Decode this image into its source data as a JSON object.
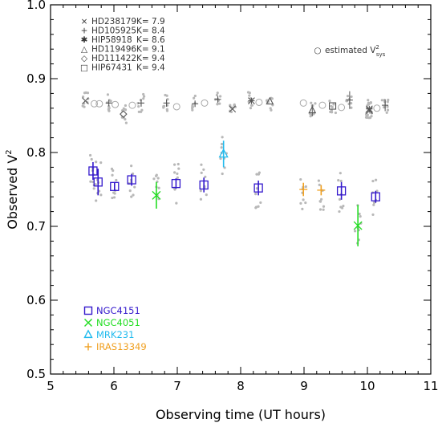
{
  "chart_data": {
    "type": "scatter",
    "xlabel": "Observing time (UT hours)",
    "ylabel": "Observed V²",
    "ylabel_base": "Observed V",
    "ylabel_sup": "2",
    "xlim": [
      5,
      11
    ],
    "ylim": [
      0.5,
      1.0
    ],
    "x_ticks": [
      "5",
      "6",
      "7",
      "8",
      "9",
      "10",
      "11"
    ],
    "y_ticks": [
      "0.5",
      "0.6",
      "0.7",
      "0.8",
      "0.9",
      "1.0"
    ],
    "colors": {
      "ngc4151": "#3318cc",
      "ngc4051": "#22dd22",
      "mrk231": "#22bbee",
      "iras13349": "#f0a020",
      "calibrator": "#555555",
      "estimated": "#a8a8a8",
      "raw": "#b8b8b8"
    },
    "calibrator_legend": [
      {
        "symbol": "×",
        "name": "HD238179",
        "k": "K= 7.9"
      },
      {
        "symbol": "+",
        "name": "HD105925",
        "k": "K= 8.4"
      },
      {
        "symbol": "✱",
        "name": "HIP58918",
        "k": "K= 8.6"
      },
      {
        "symbol": "△",
        "name": "HD119496",
        "k": "K= 9.1"
      },
      {
        "symbol": "◇",
        "name": "HD111422",
        "k": "K= 9.4"
      },
      {
        "symbol": "□",
        "name": "HIP67431",
        "k": "K= 9.4"
      }
    ],
    "estimated_legend": {
      "symbol": "○",
      "text": "estimated V",
      "sup": "2",
      "sub": "sys"
    },
    "science_legend": [
      {
        "symbol": "□",
        "name": "NGC4151",
        "color": "#3318cc"
      },
      {
        "symbol": "×",
        "name": "NGC4051",
        "color": "#22dd22"
      },
      {
        "symbol": "△",
        "name": "MRK231",
        "color": "#22bbee"
      },
      {
        "symbol": "+",
        "name": "IRAS13349",
        "color": "#f0a020"
      }
    ],
    "series": [
      {
        "name": "NGC4151",
        "marker": "square",
        "color": "#3318cc",
        "points": [
          {
            "x": 5.67,
            "y": 0.775,
            "err": 0.012
          },
          {
            "x": 5.75,
            "y": 0.76,
            "err": 0.018
          },
          {
            "x": 6.01,
            "y": 0.754,
            "err": 0.006
          },
          {
            "x": 6.28,
            "y": 0.763,
            "err": 0.008
          },
          {
            "x": 6.98,
            "y": 0.758,
            "err": 0.007
          },
          {
            "x": 7.42,
            "y": 0.756,
            "err": 0.01
          },
          {
            "x": 8.28,
            "y": 0.752,
            "err": 0.01
          },
          {
            "x": 9.59,
            "y": 0.748,
            "err": 0.012
          },
          {
            "x": 10.13,
            "y": 0.74,
            "err": 0.008
          }
        ]
      },
      {
        "name": "NGC4051",
        "marker": "x",
        "color": "#22dd22",
        "points": [
          {
            "x": 6.67,
            "y": 0.742,
            "err": 0.018
          },
          {
            "x": 9.85,
            "y": 0.701,
            "err": 0.028
          }
        ]
      },
      {
        "name": "MRK231",
        "marker": "triangle",
        "color": "#22bbee",
        "points": [
          {
            "x": 7.73,
            "y": 0.798,
            "err": 0.018
          }
        ]
      },
      {
        "name": "IRAS13349",
        "marker": "plus",
        "color": "#f0a020",
        "points": [
          {
            "x": 8.99,
            "y": 0.75,
            "err": 0.009
          },
          {
            "x": 9.27,
            "y": 0.749,
            "err": 0.007
          }
        ]
      },
      {
        "name": "HD238179",
        "marker": "x",
        "color": "#555555",
        "points": [
          {
            "x": 5.55,
            "y": 0.87,
            "err": 0.0
          },
          {
            "x": 7.87,
            "y": 0.859,
            "err": 0.0
          },
          {
            "x": 10.03,
            "y": 0.857,
            "err": 0.0
          }
        ]
      },
      {
        "name": "HD105925",
        "marker": "plus",
        "color": "#555555",
        "points": [
          {
            "x": 5.92,
            "y": 0.867,
            "err": 0.0
          },
          {
            "x": 6.43,
            "y": 0.867,
            "err": 0.005
          },
          {
            "x": 6.83,
            "y": 0.867,
            "err": 0.005
          },
          {
            "x": 7.28,
            "y": 0.866,
            "err": 0.0
          },
          {
            "x": 7.64,
            "y": 0.872,
            "err": 0.0
          },
          {
            "x": 9.72,
            "y": 0.871,
            "err": 0.012
          },
          {
            "x": 10.28,
            "y": 0.864,
            "err": 0.008
          }
        ]
      },
      {
        "name": "HIP58918",
        "marker": "asterisk",
        "color": "#555555",
        "points": [
          {
            "x": 8.17,
            "y": 0.87,
            "err": 0.0
          },
          {
            "x": 10.03,
            "y": 0.859,
            "err": 0.0
          }
        ]
      },
      {
        "name": "HD119496",
        "marker": "triangle",
        "color": "#555555",
        "points": [
          {
            "x": 8.46,
            "y": 0.869,
            "err": 0.0
          },
          {
            "x": 9.13,
            "y": 0.857,
            "err": 0.008
          }
        ]
      },
      {
        "name": "HD111422",
        "marker": "diamond",
        "color": "#555555",
        "points": [
          {
            "x": 6.15,
            "y": 0.852,
            "err": 0.0
          }
        ]
      },
      {
        "name": "HIP67431",
        "marker": "square",
        "color": "#555555",
        "points": [
          {
            "x": 9.45,
            "y": 0.863,
            "err": 0.0
          }
        ]
      },
      {
        "name": "estimated V2sys",
        "marker": "circle",
        "color": "#a8a8a8",
        "points": [
          {
            "x": 5.69,
            "y": 0.866
          },
          {
            "x": 5.77,
            "y": 0.866
          },
          {
            "x": 6.02,
            "y": 0.865
          },
          {
            "x": 6.29,
            "y": 0.864
          },
          {
            "x": 6.99,
            "y": 0.862
          },
          {
            "x": 7.43,
            "y": 0.867
          },
          {
            "x": 8.29,
            "y": 0.868
          },
          {
            "x": 8.99,
            "y": 0.867
          },
          {
            "x": 9.29,
            "y": 0.864
          },
          {
            "x": 9.59,
            "y": 0.861
          },
          {
            "x": 10.15,
            "y": 0.86
          }
        ]
      }
    ]
  }
}
